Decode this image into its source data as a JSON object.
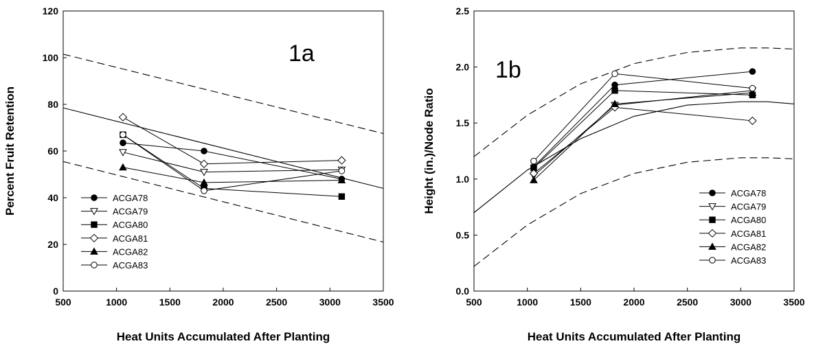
{
  "chart_data": [
    {
      "type": "line",
      "panel_label": "1a",
      "xlabel": "Heat Units Accumulated After Planting",
      "ylabel": "Percent Fruit Retention",
      "xlim": [
        500,
        3500
      ],
      "ylim": [
        0,
        120
      ],
      "xticks": [
        500,
        1000,
        1500,
        2000,
        2500,
        3000,
        3500
      ],
      "yticks": [
        0,
        20,
        40,
        60,
        80,
        100,
        120
      ],
      "x": [
        1060,
        1820,
        3110
      ],
      "series": [
        {
          "name": "ACGA78",
          "marker": "circle-filled",
          "values": [
            63.5,
            60,
            48
          ]
        },
        {
          "name": "ACGA79",
          "marker": "triangle-down-open",
          "values": [
            59.5,
            51,
            52
          ]
        },
        {
          "name": "ACGA80",
          "marker": "square-filled",
          "values": [
            67,
            44,
            40.5
          ]
        },
        {
          "name": "ACGA81",
          "marker": "diamond-open",
          "values": [
            74.5,
            54.5,
            56
          ]
        },
        {
          "name": "ACGA82",
          "marker": "triangle-up-filled",
          "values": [
            53,
            46.5,
            47.5
          ]
        },
        {
          "name": "ACGA83",
          "marker": "circle-open",
          "values": [
            67,
            43,
            51.5
          ]
        }
      ],
      "fit_lines": [
        {
          "style": "solid",
          "x": [
            500,
            3500
          ],
          "y": [
            78.5,
            44
          ]
        },
        {
          "style": "dashed",
          "x": [
            500,
            3500
          ],
          "y": [
            101.5,
            67.5
          ]
        },
        {
          "style": "dashed",
          "x": [
            500,
            3500
          ],
          "y": [
            55.5,
            21
          ]
        }
      ],
      "legend_position": "lower-left",
      "grid": false
    },
    {
      "type": "line",
      "panel_label": "1b",
      "xlabel": "Heat Units Accumulated After Planting",
      "ylabel": "Height (in.)/Node Ratio",
      "xlim": [
        500,
        3500
      ],
      "ylim": [
        0.0,
        2.5
      ],
      "xticks": [
        500,
        1000,
        1500,
        2000,
        2500,
        3000,
        3500
      ],
      "yticks": [
        "0.0",
        "0.5",
        "1.0",
        "1.5",
        "2.0",
        "2.5"
      ],
      "x": [
        1060,
        1820,
        3110
      ],
      "series": [
        {
          "name": "ACGA78",
          "marker": "circle-filled",
          "values": [
            1.11,
            1.84,
            1.96
          ]
        },
        {
          "name": "ACGA79",
          "marker": "triangle-down-open",
          "values": [
            1.03,
            1.66,
            1.79
          ]
        },
        {
          "name": "ACGA80",
          "marker": "square-filled",
          "values": [
            1.1,
            1.79,
            1.75
          ]
        },
        {
          "name": "ACGA81",
          "marker": "diamond-open",
          "values": [
            1.05,
            1.64,
            1.52
          ]
        },
        {
          "name": "ACGA82",
          "marker": "triangle-up-filled",
          "values": [
            0.99,
            1.67,
            1.77
          ]
        },
        {
          "name": "ACGA83",
          "marker": "circle-open",
          "values": [
            1.16,
            1.94,
            1.81
          ]
        }
      ],
      "fit_lines": [
        {
          "style": "solid",
          "x": [
            500,
            1000,
            1500,
            2000,
            2500,
            3000,
            3250,
            3500
          ],
          "y": [
            0.7,
            1.08,
            1.36,
            1.56,
            1.66,
            1.69,
            1.69,
            1.67
          ]
        },
        {
          "style": "dashed",
          "x": [
            500,
            1000,
            1500,
            2000,
            2500,
            3000,
            3250,
            3500
          ],
          "y": [
            1.2,
            1.57,
            1.85,
            2.03,
            2.13,
            2.17,
            2.17,
            2.16
          ]
        },
        {
          "style": "dashed",
          "x": [
            500,
            1000,
            1500,
            2000,
            2500,
            3000,
            3250,
            3500
          ],
          "y": [
            0.22,
            0.59,
            0.87,
            1.05,
            1.15,
            1.19,
            1.19,
            1.18
          ]
        }
      ],
      "legend_position": "lower-right",
      "grid": false
    }
  ]
}
